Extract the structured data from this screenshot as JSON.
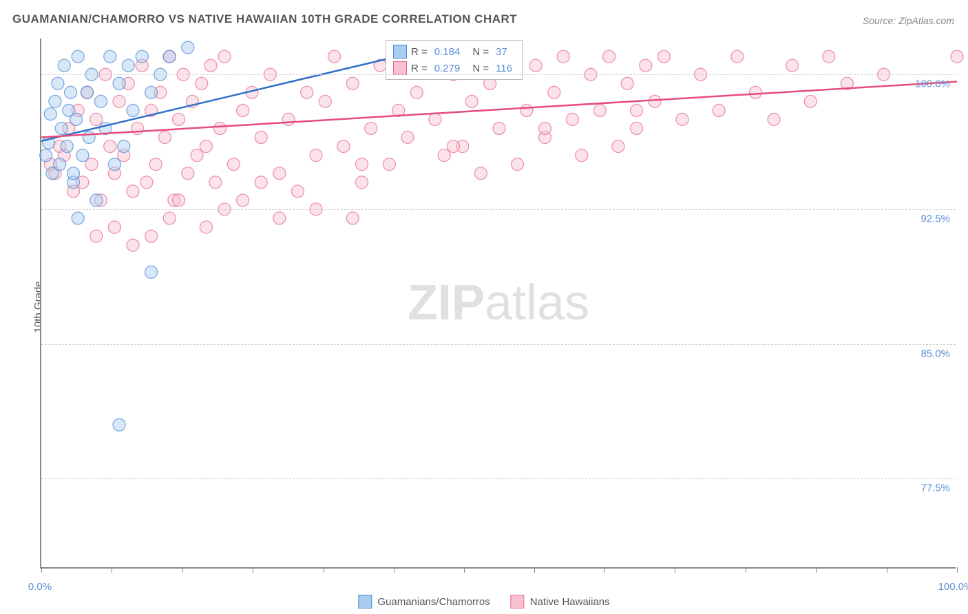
{
  "title": "GUAMANIAN/CHAMORRO VS NATIVE HAWAIIAN 10TH GRADE CORRELATION CHART",
  "source": "Source: ZipAtlas.com",
  "watermark_bold": "ZIP",
  "watermark_rest": "atlas",
  "y_axis_label": "10th Grade",
  "chart": {
    "type": "scatter",
    "background_color": "#ffffff",
    "grid_color": "#d0d0d0",
    "axis_color": "#888888",
    "tick_label_color": "#5a8fd6",
    "xlim": [
      0,
      100
    ],
    "ylim": [
      72.5,
      102
    ],
    "x_ticks_minor": [
      0,
      7.7,
      15.4,
      23.1,
      30.8,
      38.5,
      46.2,
      53.8,
      61.5,
      69.2,
      76.9,
      84.6,
      92.3,
      100
    ],
    "x_tick_labels": [
      {
        "x": 0,
        "label": "0.0%"
      },
      {
        "x": 100,
        "label": "100.0%"
      }
    ],
    "y_tick_labels": [
      {
        "y": 77.5,
        "label": "77.5%"
      },
      {
        "y": 85.0,
        "label": "85.0%"
      },
      {
        "y": 92.5,
        "label": "92.5%"
      },
      {
        "y": 100.0,
        "label": "100.0%"
      }
    ],
    "marker_radius": 9,
    "marker_opacity": 0.45,
    "line_width": 2.5,
    "series": [
      {
        "name": "Guamanians/Chamorros",
        "fill_color": "#a8cdf0",
        "stroke_color": "#4a88d0",
        "line_color": "#2e6fc9",
        "R": "0.184",
        "N": "37",
        "trend": {
          "x1": 0,
          "y1": 96.3,
          "x2": 43,
          "y2": 101.5
        },
        "points": [
          [
            0.5,
            95.5
          ],
          [
            0.8,
            96.2
          ],
          [
            1.0,
            97.8
          ],
          [
            1.2,
            94.5
          ],
          [
            1.5,
            98.5
          ],
          [
            1.8,
            99.5
          ],
          [
            2.0,
            95.0
          ],
          [
            2.2,
            97.0
          ],
          [
            2.5,
            100.5
          ],
          [
            2.8,
            96.0
          ],
          [
            3.0,
            98.0
          ],
          [
            3.2,
            99.0
          ],
          [
            3.5,
            94.0
          ],
          [
            3.8,
            97.5
          ],
          [
            4.0,
            101.0
          ],
          [
            4.5,
            95.5
          ],
          [
            5.0,
            99.0
          ],
          [
            5.2,
            96.5
          ],
          [
            5.5,
            100.0
          ],
          [
            6.0,
            93.0
          ],
          [
            6.5,
            98.5
          ],
          [
            7.0,
            97.0
          ],
          [
            7.5,
            101.0
          ],
          [
            8.0,
            95.0
          ],
          [
            8.5,
            99.5
          ],
          [
            9.0,
            96.0
          ],
          [
            9.5,
            100.5
          ],
          [
            10.0,
            98.0
          ],
          [
            4.0,
            92.0
          ],
          [
            11.0,
            101.0
          ],
          [
            12.0,
            99.0
          ],
          [
            13.0,
            100.0
          ],
          [
            14.0,
            101.0
          ],
          [
            16.0,
            101.5
          ],
          [
            12.0,
            89.0
          ],
          [
            8.5,
            80.5
          ],
          [
            3.5,
            94.5
          ]
        ]
      },
      {
        "name": "Native Hawaiians",
        "fill_color": "#f7c1cf",
        "stroke_color": "#e56b8e",
        "line_color": "#e84b7a",
        "R": "0.279",
        "N": "116",
        "trend": {
          "x1": 0,
          "y1": 96.5,
          "x2": 100,
          "y2": 99.6
        },
        "points": [
          [
            1.0,
            95.0
          ],
          [
            1.5,
            94.5
          ],
          [
            2.0,
            96.0
          ],
          [
            2.5,
            95.5
          ],
          [
            3.0,
            97.0
          ],
          [
            3.5,
            93.5
          ],
          [
            4.0,
            98.0
          ],
          [
            4.5,
            94.0
          ],
          [
            5.0,
            99.0
          ],
          [
            5.5,
            95.0
          ],
          [
            6.0,
            97.5
          ],
          [
            6.5,
            93.0
          ],
          [
            7.0,
            100.0
          ],
          [
            7.5,
            96.0
          ],
          [
            8.0,
            94.5
          ],
          [
            8.5,
            98.5
          ],
          [
            9.0,
            95.5
          ],
          [
            9.5,
            99.5
          ],
          [
            10.0,
            93.5
          ],
          [
            10.5,
            97.0
          ],
          [
            11.0,
            100.5
          ],
          [
            11.5,
            94.0
          ],
          [
            12.0,
            98.0
          ],
          [
            12.5,
            95.0
          ],
          [
            13.0,
            99.0
          ],
          [
            13.5,
            96.5
          ],
          [
            14.0,
            101.0
          ],
          [
            14.5,
            93.0
          ],
          [
            15.0,
            97.5
          ],
          [
            15.5,
            100.0
          ],
          [
            16.0,
            94.5
          ],
          [
            16.5,
            98.5
          ],
          [
            17.0,
            95.5
          ],
          [
            17.5,
            99.5
          ],
          [
            18.0,
            96.0
          ],
          [
            18.5,
            100.5
          ],
          [
            19.0,
            94.0
          ],
          [
            19.5,
            97.0
          ],
          [
            20.0,
            101.0
          ],
          [
            21.0,
            95.0
          ],
          [
            22.0,
            98.0
          ],
          [
            23.0,
            99.0
          ],
          [
            24.0,
            96.5
          ],
          [
            25.0,
            100.0
          ],
          [
            26.0,
            94.5
          ],
          [
            27.0,
            97.5
          ],
          [
            28.0,
            93.5
          ],
          [
            29.0,
            99.0
          ],
          [
            30.0,
            95.5
          ],
          [
            31.0,
            98.5
          ],
          [
            32.0,
            101.0
          ],
          [
            33.0,
            96.0
          ],
          [
            34.0,
            99.5
          ],
          [
            35.0,
            94.0
          ],
          [
            36.0,
            97.0
          ],
          [
            37.0,
            100.5
          ],
          [
            38.0,
            95.0
          ],
          [
            39.0,
            98.0
          ],
          [
            40.0,
            96.5
          ],
          [
            41.0,
            99.0
          ],
          [
            42.0,
            101.0
          ],
          [
            43.0,
            97.5
          ],
          [
            44.0,
            95.5
          ],
          [
            45.0,
            100.0
          ],
          [
            46.0,
            96.0
          ],
          [
            47.0,
            98.5
          ],
          [
            48.0,
            94.5
          ],
          [
            49.0,
            99.5
          ],
          [
            50.0,
            97.0
          ],
          [
            51.0,
            101.0
          ],
          [
            52.0,
            95.0
          ],
          [
            53.0,
            98.0
          ],
          [
            54.0,
            100.5
          ],
          [
            55.0,
            96.5
          ],
          [
            56.0,
            99.0
          ],
          [
            57.0,
            101.0
          ],
          [
            58.0,
            97.5
          ],
          [
            59.0,
            95.5
          ],
          [
            60.0,
            100.0
          ],
          [
            61.0,
            98.0
          ],
          [
            62.0,
            101.0
          ],
          [
            63.0,
            96.0
          ],
          [
            64.0,
            99.5
          ],
          [
            65.0,
            97.0
          ],
          [
            66.0,
            100.5
          ],
          [
            67.0,
            98.5
          ],
          [
            68.0,
            101.0
          ],
          [
            70.0,
            97.5
          ],
          [
            72.0,
            100.0
          ],
          [
            74.0,
            98.0
          ],
          [
            76.0,
            101.0
          ],
          [
            78.0,
            99.0
          ],
          [
            80.0,
            97.5
          ],
          [
            82.0,
            100.5
          ],
          [
            84.0,
            98.5
          ],
          [
            86.0,
            101.0
          ],
          [
            88.0,
            99.5
          ],
          [
            92.0,
            100.0
          ],
          [
            100.0,
            101.0
          ],
          [
            6.0,
            91.0
          ],
          [
            10.0,
            90.5
          ],
          [
            14.0,
            92.0
          ],
          [
            18.0,
            91.5
          ],
          [
            22.0,
            93.0
          ],
          [
            26.0,
            92.0
          ],
          [
            30.0,
            92.5
          ],
          [
            34.0,
            92.0
          ],
          [
            20.0,
            92.5
          ],
          [
            15.0,
            93.0
          ],
          [
            24.0,
            94.0
          ],
          [
            35.0,
            95.0
          ],
          [
            45.0,
            96.0
          ],
          [
            55.0,
            97.0
          ],
          [
            65.0,
            98.0
          ],
          [
            8.0,
            91.5
          ],
          [
            12.0,
            91.0
          ]
        ]
      }
    ]
  },
  "stats_legend": {
    "r_label": "R =",
    "n_label": "N ="
  },
  "bottom_legend": {
    "label1": "Guamanians/Chamorros",
    "label2": "Native Hawaiians"
  }
}
